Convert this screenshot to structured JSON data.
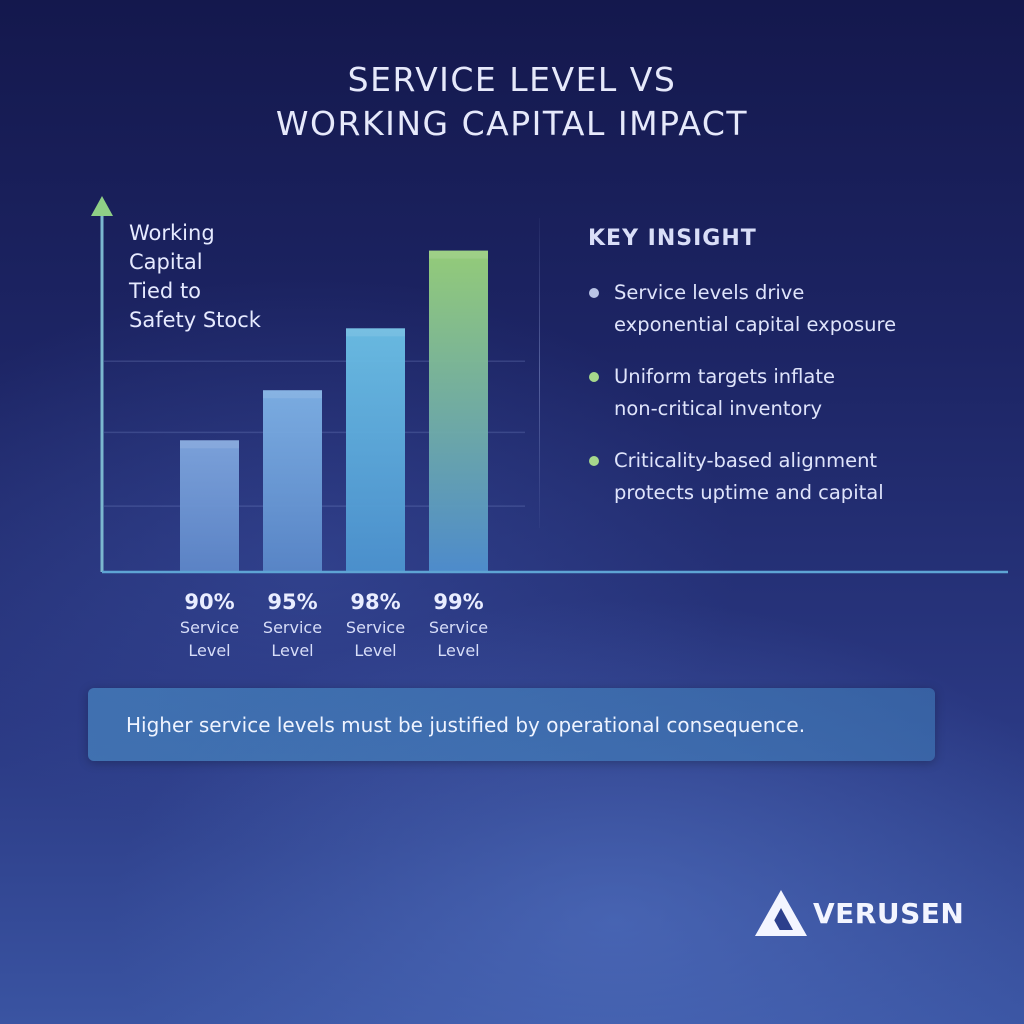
{
  "title": {
    "line1": "SERVICE LEVEL VS",
    "line2": "WORKING CAPITAL IMPACT"
  },
  "chart_data": {
    "type": "bar",
    "ylabel_lines": [
      "Working",
      "Capital",
      "Tied to",
      "Safety Stock"
    ],
    "categories": [
      {
        "value": "90%",
        "label_lines": [
          "Service",
          "Level"
        ]
      },
      {
        "value": "95%",
        "label_lines": [
          "Service",
          "Level"
        ]
      },
      {
        "value": "98%",
        "label_lines": [
          "Service",
          "Level"
        ]
      },
      {
        "value": "99%",
        "label_lines": [
          "Service",
          "Level"
        ]
      }
    ],
    "values": [
      1.0,
      1.38,
      1.85,
      2.44
    ],
    "ylim": [
      0,
      2.9
    ],
    "grid": true,
    "colors": {
      "bar_top": [
        "#7fa6de",
        "#7fb2e6",
        "#6cc0e6",
        "#9ad47a"
      ],
      "bar_bottom": [
        "#5d86c8",
        "#5a88c9",
        "#4c93cf",
        "#4f8fcf"
      ],
      "axis": "#6fb0d8",
      "arrow": "#8fcf86"
    }
  },
  "insight": {
    "heading": "KEY INSIGHT",
    "items": [
      {
        "line1": "Service levels drive",
        "line2": "exponential capital exposure",
        "dot_color": "#b9c4e6"
      },
      {
        "line1": "Uniform targets inflate",
        "line2": "non-critical inventory",
        "dot_color": "#a6d88c"
      },
      {
        "line1": "Criticality-based alignment",
        "line2": "protects uptime and capital",
        "dot_color": "#a6d88c"
      }
    ]
  },
  "callout": {
    "text": "Higher service levels must be justified by operational consequence."
  },
  "brand": {
    "name": "VERUSEN",
    "icon": "triangle-logo-icon"
  }
}
